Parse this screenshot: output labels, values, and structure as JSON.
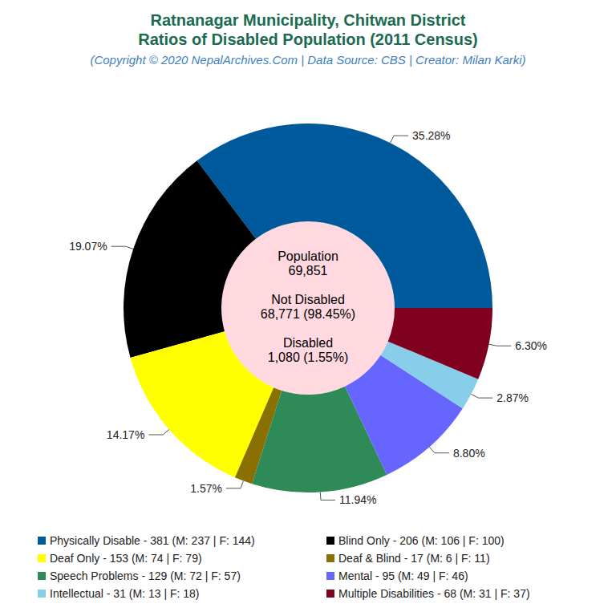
{
  "chart_data": {
    "type": "pie",
    "title": [
      "Ratnanagar Municipality, Chitwan District",
      "Ratios of Disabled Population (2011 Census)"
    ],
    "subtitle": "(Copyright © 2020 NepalArchives.Com | Data Source: CBS | Creator: Milan Karki)",
    "center_text": [
      "Population",
      "69,851",
      "Not Disabled",
      "68,771 (98.45%)",
      "Disabled",
      "1,080 (1.55%)"
    ],
    "categories": [
      "Physically Disable - 381 (M: 237 | F: 144)",
      "Blind Only - 206 (M: 106 | F: 100)",
      "Deaf Only - 153 (M: 74 | F: 79)",
      "Deaf & Blind - 17 (M: 6 | F: 11)",
      "Speech Problems - 129 (M: 72 | F: 57)",
      "Mental - 95 (M: 49 | F: 46)",
      "Intellectual - 31 (M: 13 | F: 18)",
      "Multiple Disabilities - 68 (M: 31 | F: 37)"
    ],
    "values": [
      35.28,
      19.07,
      14.17,
      1.57,
      11.94,
      8.8,
      2.87,
      6.3
    ],
    "value_labels": [
      "35.28%",
      "19.07%",
      "14.17%",
      "1.57%",
      "11.94%",
      "8.80%",
      "2.87%",
      "6.30%"
    ],
    "colors": [
      "#00599b",
      "#000000",
      "#ffff00",
      "#8a7000",
      "#2e8b57",
      "#6666ff",
      "#87ceeb",
      "#800020"
    ],
    "data_labels": true,
    "legend": "bottom"
  }
}
